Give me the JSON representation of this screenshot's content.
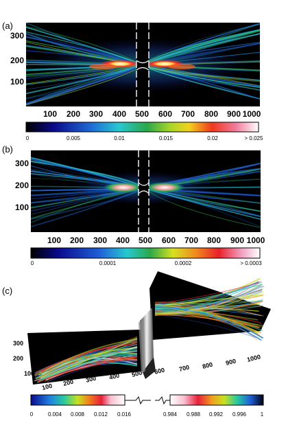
{
  "panels": [
    {
      "label": "(a)",
      "y_ticks": [
        "300",
        "200",
        "100"
      ],
      "x_ticks": [
        "100",
        "200",
        "300",
        "400",
        "500",
        "600",
        "700",
        "800",
        "900",
        "1000"
      ],
      "colorbar_ticks": [
        "0",
        "0.005",
        "0.01",
        "0.015",
        "0.02",
        "> 0.025"
      ]
    },
    {
      "label": "(b)",
      "y_ticks": [
        "300",
        "200",
        "100"
      ],
      "x_ticks": [
        "100",
        "200",
        "300",
        "400",
        "500",
        "600",
        "700",
        "800",
        "900",
        "1000"
      ],
      "colorbar_ticks": [
        "0",
        "0.0001",
        "0.0002",
        "> 0.0003"
      ]
    },
    {
      "label": "(c)",
      "y_ticks": [
        "300",
        "200",
        "100"
      ],
      "x_ticks": [
        "100",
        "200",
        "300",
        "400",
        "500",
        "600",
        "700",
        "800",
        "900",
        "1000"
      ],
      "colorbar_left_ticks": [
        "0",
        "0.004",
        "0.008",
        "0.012",
        "0.016"
      ],
      "colorbar_right_ticks": [
        "0.984",
        "0.988",
        "0.992",
        "0.996",
        "1"
      ]
    }
  ],
  "colors": {
    "background": "#000000",
    "low": "#0a1a8c",
    "mid": "#19b27a",
    "high": "#ff2a1a",
    "peak": "#ffffff"
  }
}
